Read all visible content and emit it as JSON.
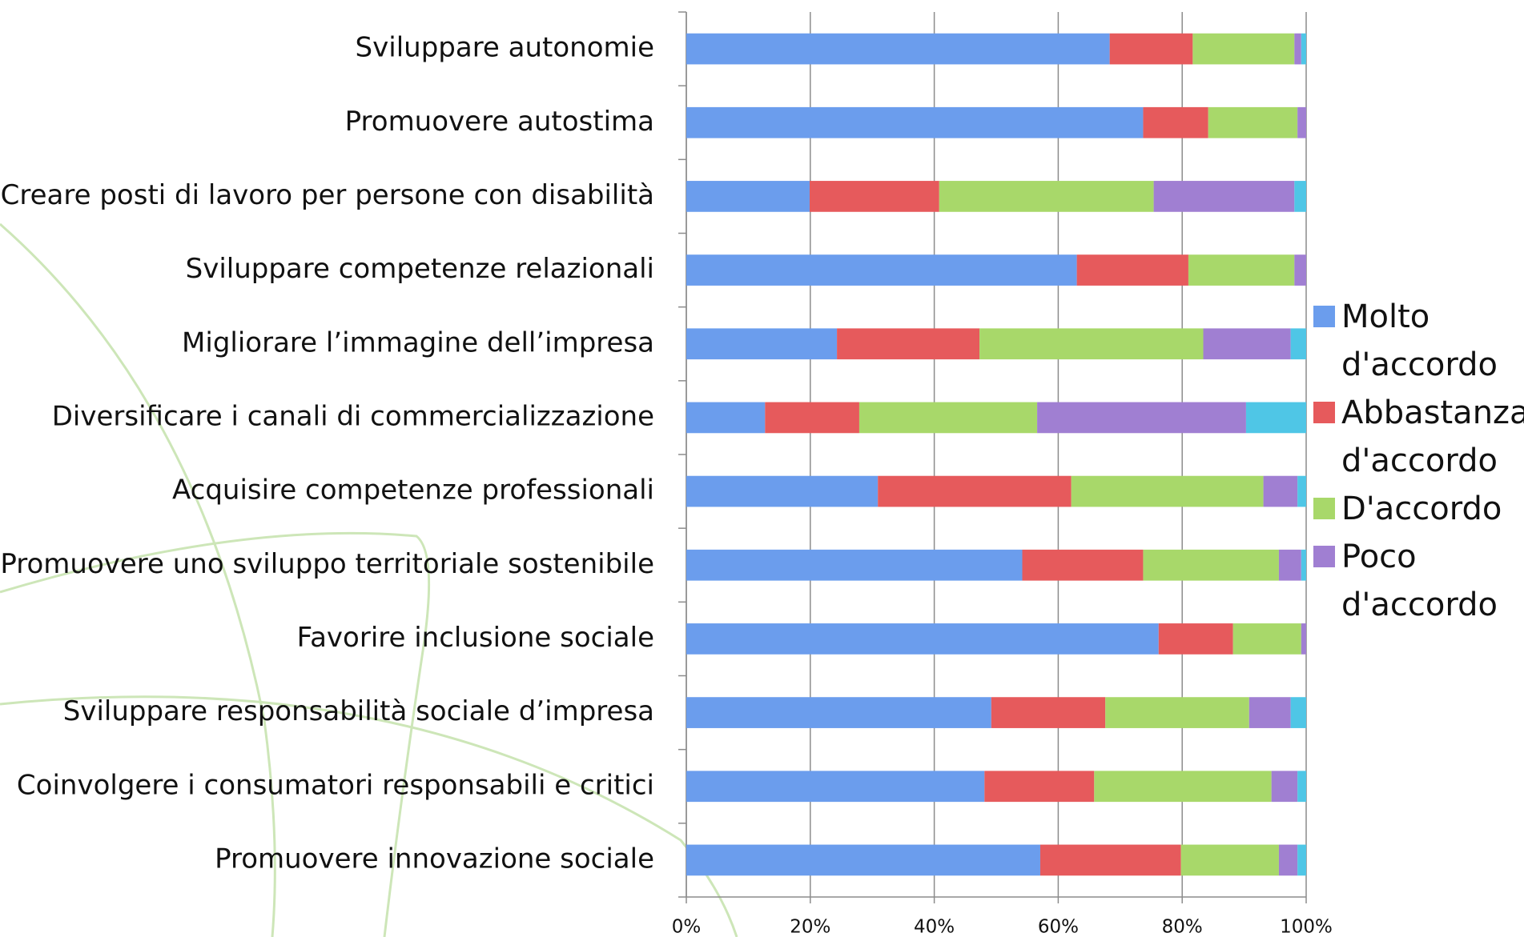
{
  "chart_data": {
    "type": "stacked-barh",
    "categories": [
      "Sviluppare autonomie",
      "Promuovere autostima",
      "Creare posti di lavoro per persone con disabilità",
      "Sviluppare competenze relazionali",
      "Migliorare l’immagine dell’impresa",
      "Diversificare i canali di commercializzazione",
      "Acquisire competenze professionali",
      "Promuovere uno sviluppo territoriale sostenibile",
      "Favorire inclusione sociale",
      "Sviluppare responsabilità sociale d’impresa",
      "Coinvolgere i consumatori responsabili e critici",
      "Promuovere innovazione sociale"
    ],
    "series": [
      {
        "name": "Molto d'accordo",
        "color": "#6b9ded",
        "values": [
          68.3,
          73.7,
          19.9,
          63.0,
          24.3,
          12.7,
          30.9,
          54.2,
          76.2,
          49.2,
          48.1,
          57.1
        ]
      },
      {
        "name": "Abbastanza d'accordo",
        "color": "#e65a5c",
        "values": [
          13.4,
          10.5,
          20.9,
          18.0,
          23.0,
          15.2,
          31.2,
          19.5,
          12.0,
          18.4,
          17.7,
          22.7
        ]
      },
      {
        "name": "D'accordo",
        "color": "#a8d86a",
        "values": [
          16.4,
          14.4,
          34.6,
          17.1,
          36.1,
          28.7,
          31.0,
          21.9,
          11.0,
          23.2,
          28.6,
          15.8
        ]
      },
      {
        "name": "Poco d'accordo",
        "color": "#a07fd2",
        "values": [
          1.1,
          1.4,
          22.7,
          1.9,
          14.1,
          33.7,
          5.5,
          3.6,
          0.8,
          6.7,
          4.2,
          3.0
        ]
      },
      {
        "color": "#4fc6e6",
        "values": [
          0.8,
          0,
          1.9,
          0,
          2.5,
          9.7,
          1.4,
          0.8,
          0,
          2.5,
          1.4,
          1.4
        ]
      }
    ],
    "xlim": [
      0,
      100
    ],
    "xticks": [
      {
        "value": 0,
        "label": "0%"
      },
      {
        "value": 20,
        "label": "20%"
      },
      {
        "value": 40,
        "label": "40%"
      },
      {
        "value": 60,
        "label": "60%"
      },
      {
        "value": 80,
        "label": "80%"
      },
      {
        "value": 100,
        "label": "100%"
      }
    ],
    "grid": true
  }
}
